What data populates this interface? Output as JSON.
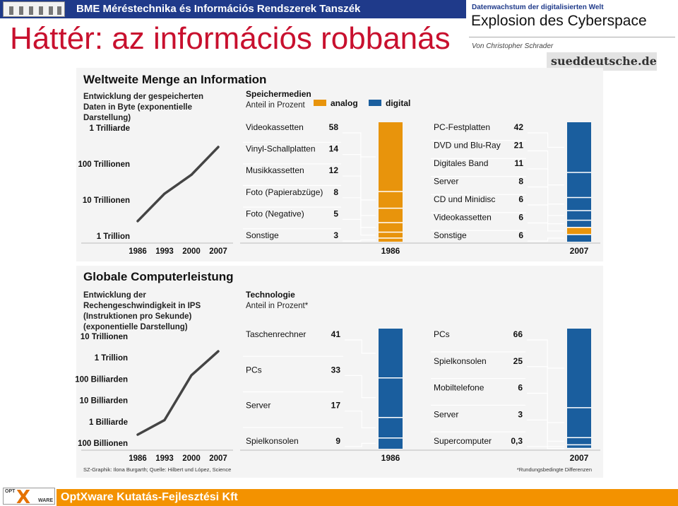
{
  "header": {
    "institution": "BME Méréstechnika és Információs Rendszerek Tanszék",
    "slide_title": "Háttér: az információs robbanás"
  },
  "article": {
    "kicker": "Datenwachstum der digitalisierten Welt",
    "title": "Explosion des Cyberspace",
    "author": "Von Christopher Schrader",
    "source": "sueddeutsche.de"
  },
  "footer": {
    "company": "OptXware Kutatás-Fejlesztési Kft",
    "logo_opt": "OPT",
    "logo_x": "X",
    "logo_ware": "WARE"
  },
  "colors": {
    "analog": "#e8940c",
    "digital": "#1a5e9e",
    "line": "#444444",
    "panel": "#f4f4f4"
  },
  "chart_data": [
    {
      "type": "line",
      "title": "Weltweite Menge an Information",
      "subtitle": "Entwicklung der gespeicherten Daten in Byte (exponentielle Darstellung)",
      "x": [
        "1986",
        "1993",
        "2000",
        "2007"
      ],
      "y_ticks": [
        "1 Trilliarde",
        "100 Trillionen",
        "10 Trillionen",
        "1 Trillion"
      ],
      "y_scale": "log",
      "y_tick_values": [
        1e+21,
        1e+20,
        1e+19,
        1e+18
      ],
      "values": [
        2.6e+18,
        1.5e+19,
        5e+19,
        2.95e+20
      ]
    },
    {
      "type": "bar",
      "title": "Speichermedien",
      "subtitle": "Anteil in Prozent",
      "legend": [
        "analog",
        "digital"
      ],
      "stacks": [
        {
          "label": "1986",
          "segments": [
            {
              "name": "Videokassetten",
              "value": 58,
              "kind": "analog"
            },
            {
              "name": "Vinyl-Schallplatten",
              "value": 14,
              "kind": "analog"
            },
            {
              "name": "Musikkassetten",
              "value": 12,
              "kind": "analog"
            },
            {
              "name": "Foto (Papierabzüge)",
              "value": 8,
              "kind": "analog"
            },
            {
              "name": "Foto (Negative)",
              "value": 5,
              "kind": "analog"
            },
            {
              "name": "Sonstige",
              "value": 3,
              "kind": "analog"
            }
          ]
        },
        {
          "label": "2007",
          "segments": [
            {
              "name": "PC-Festplatten",
              "value": 42,
              "kind": "digital"
            },
            {
              "name": "DVD und Blu-Ray",
              "value": 21,
              "kind": "digital"
            },
            {
              "name": "Digitales Band",
              "value": 11,
              "kind": "digital"
            },
            {
              "name": "Server",
              "value": 8,
              "kind": "digital"
            },
            {
              "name": "CD und Minidisc",
              "value": 6,
              "kind": "digital"
            },
            {
              "name": "Videokassetten",
              "value": 6,
              "kind": "analog"
            },
            {
              "name": "Sonstige",
              "value": 6,
              "kind": "digital"
            }
          ]
        }
      ]
    },
    {
      "type": "line",
      "title": "Globale Computerleistung",
      "subtitle": "Entwicklung der Rechengeschwindigkeit in IPS (Instruktionen pro Sekunde) (exponentielle Darstellung)",
      "x": [
        "1986",
        "1993",
        "2000",
        "2007"
      ],
      "y_ticks": [
        "10 Trillionen",
        "1 Trillion",
        "100 Billiarden",
        "10 Billiarden",
        "1 Billiarde",
        "100 Billionen"
      ],
      "y_scale": "log",
      "y_tick_values": [
        1e+19,
        1e+18,
        1e+17,
        1e+16,
        1000000000000000.0,
        100000000000000.0
      ],
      "values": [
        250000000000000.0,
        1200000000000000.0,
        1.5e+17,
        2e+18
      ]
    },
    {
      "type": "bar",
      "title": "Technologie",
      "subtitle": "Anteil in Prozent*",
      "stacks": [
        {
          "label": "1986",
          "segments": [
            {
              "name": "Taschenrechner",
              "value": "41",
              "kind": "digital"
            },
            {
              "name": "PCs",
              "value": "33",
              "kind": "digital"
            },
            {
              "name": "Server",
              "value": "17",
              "kind": "digital"
            },
            {
              "name": "Spielkonsolen",
              "value": "9",
              "kind": "digital"
            }
          ]
        },
        {
          "label": "2007",
          "segments": [
            {
              "name": "PCs",
              "value": "66",
              "kind": "digital"
            },
            {
              "name": "Spielkonsolen",
              "value": "25",
              "kind": "digital"
            },
            {
              "name": "Mobiltelefone",
              "value": "6",
              "kind": "digital"
            },
            {
              "name": "Server",
              "value": "3",
              "kind": "digital"
            },
            {
              "name": "Supercomputer",
              "value": "0,3",
              "kind": "digital"
            }
          ]
        }
      ]
    }
  ],
  "credits": "SZ-Graphik: Ilona Burgarth; Quelle: Hilbert und López, Science",
  "footnote": "*Rundungsbedingte Differenzen"
}
